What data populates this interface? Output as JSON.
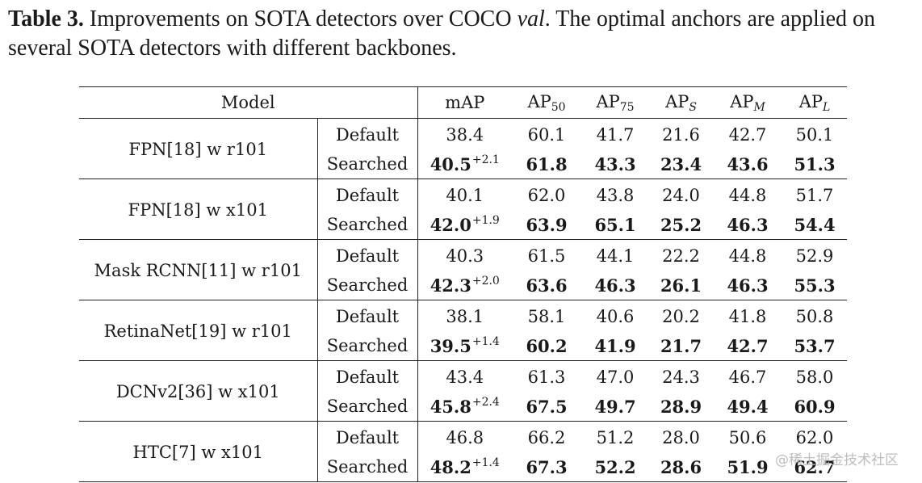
{
  "caption": {
    "label": "Table 3.",
    "text_before": " Improvements on SOTA detectors over COCO ",
    "italic": "val",
    "text_after": ". The optimal anchors are applied on several SOTA detectors with different backbones."
  },
  "table": {
    "headers": {
      "model": "Model",
      "map": "mAP",
      "ap": "AP",
      "sub50": "50",
      "sub75": "75",
      "subS": "S",
      "subM": "M",
      "subL": "L"
    },
    "rows": [
      {
        "model": "FPN[18] w r101",
        "default": {
          "label": "Default",
          "vals": [
            "38.4",
            "60.1",
            "41.7",
            "21.6",
            "42.7",
            "50.1"
          ]
        },
        "searched": {
          "label": "Searched",
          "map": "40.5",
          "gain": "+2.1",
          "vals": [
            "61.8",
            "43.3",
            "23.4",
            "43.6",
            "51.3"
          ]
        }
      },
      {
        "model": "FPN[18] w x101",
        "default": {
          "label": "Default",
          "vals": [
            "40.1",
            "62.0",
            "43.8",
            "24.0",
            "44.8",
            "51.7"
          ]
        },
        "searched": {
          "label": "Searched",
          "map": "42.0",
          "gain": "+1.9",
          "vals": [
            "63.9",
            "65.1",
            "25.2",
            "46.3",
            "54.4"
          ]
        }
      },
      {
        "model": "Mask RCNN[11] w r101",
        "default": {
          "label": "Default",
          "vals": [
            "40.3",
            "61.5",
            "44.1",
            "22.2",
            "44.8",
            "52.9"
          ]
        },
        "searched": {
          "label": "Searched",
          "map": "42.3",
          "gain": "+2.0",
          "vals": [
            "63.6",
            "46.3",
            "26.1",
            "46.3",
            "55.3"
          ]
        }
      },
      {
        "model": "RetinaNet[19] w r101",
        "default": {
          "label": "Default",
          "vals": [
            "38.1",
            "58.1",
            "40.6",
            "20.2",
            "41.8",
            "50.8"
          ]
        },
        "searched": {
          "label": "Searched",
          "map": "39.5",
          "gain": "+1.4",
          "vals": [
            "60.2",
            "41.9",
            "21.7",
            "42.7",
            "53.7"
          ]
        }
      },
      {
        "model": "DCNv2[36] w x101",
        "default": {
          "label": "Default",
          "vals": [
            "43.4",
            "61.3",
            "47.0",
            "24.3",
            "46.7",
            "58.0"
          ]
        },
        "searched": {
          "label": "Searched",
          "map": "45.8",
          "gain": "+2.4",
          "vals": [
            "67.5",
            "49.7",
            "28.9",
            "49.4",
            "60.9"
          ]
        }
      },
      {
        "model": "HTC[7] w x101",
        "default": {
          "label": "Default",
          "vals": [
            "46.8",
            "66.2",
            "51.2",
            "28.0",
            "50.6",
            "62.0"
          ]
        },
        "searched": {
          "label": "Searched",
          "map": "48.2",
          "gain": "+1.4",
          "vals": [
            "67.3",
            "52.2",
            "28.6",
            "51.9",
            "62.7"
          ]
        }
      }
    ]
  },
  "watermark": "@稀土掘金技术社区"
}
